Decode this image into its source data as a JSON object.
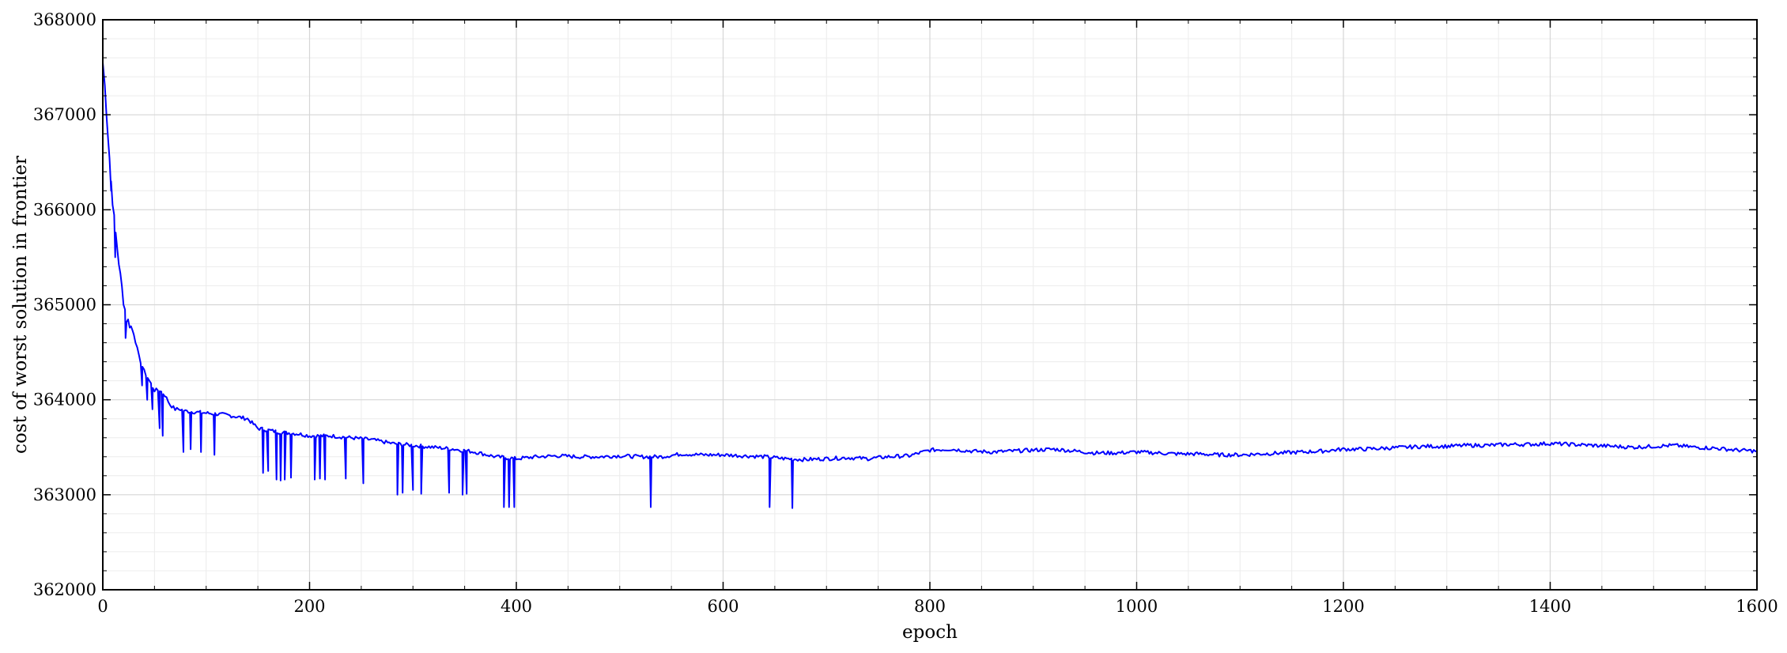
{
  "chart_data": {
    "type": "line",
    "title": "",
    "xlabel": "epoch",
    "ylabel": "cost of worst solution in frontier",
    "xlim": [
      0,
      1600
    ],
    "ylim": [
      362000,
      368000
    ],
    "x_ticks": [
      0,
      200,
      400,
      600,
      800,
      1000,
      1200,
      1400,
      1600
    ],
    "y_ticks": [
      362000,
      363000,
      364000,
      365000,
      366000,
      367000,
      368000
    ],
    "x_tick_labels": [
      "0",
      "200",
      "400",
      "600",
      "800",
      "1000",
      "1200",
      "1400",
      "1600"
    ],
    "y_tick_labels": [
      "362000",
      "363000",
      "364000",
      "365000",
      "366000",
      "367000",
      "368000"
    ],
    "grid": true,
    "minor_grid": true,
    "legend": "none",
    "series": [
      {
        "color": "#0000ff",
        "x": [
          0,
          2,
          5,
          8,
          11,
          14,
          17,
          20,
          23,
          26,
          30,
          35,
          40,
          45,
          50,
          55,
          60,
          65,
          70,
          75,
          80,
          90,
          100,
          110,
          120,
          130,
          140,
          150,
          160,
          170,
          180,
          190,
          200,
          220,
          240,
          260,
          280,
          300,
          320,
          340,
          360,
          380,
          400,
          420,
          440,
          460,
          480,
          500,
          520,
          540,
          560,
          580,
          600,
          620,
          640,
          660,
          680,
          700,
          720,
          740,
          760,
          780,
          800,
          820,
          840,
          860,
          880,
          900,
          920,
          940,
          960,
          980,
          1000,
          1020,
          1040,
          1060,
          1080,
          1100,
          1120,
          1140,
          1160,
          1180,
          1200,
          1220,
          1240,
          1260,
          1280,
          1300,
          1320,
          1340,
          1360,
          1380,
          1400,
          1420,
          1440,
          1460,
          1480,
          1500,
          1520,
          1540,
          1560,
          1580,
          1600
        ],
        "y": [
          367550,
          367300,
          366800,
          366300,
          365900,
          365600,
          365300,
          365050,
          364850,
          364800,
          364700,
          364450,
          364300,
          364200,
          364100,
          364100,
          364050,
          363950,
          363900,
          363900,
          363880,
          363870,
          363860,
          363850,
          363840,
          363820,
          363800,
          363700,
          363680,
          363660,
          363650,
          363640,
          363620,
          363620,
          363600,
          363580,
          363540,
          363520,
          363500,
          363480,
          363450,
          363400,
          363380,
          363400,
          363410,
          363400,
          363400,
          363410,
          363400,
          363400,
          363430,
          363420,
          363420,
          363410,
          363400,
          363380,
          363370,
          363380,
          363390,
          363380,
          363400,
          363410,
          363470,
          363480,
          363460,
          363450,
          363460,
          363470,
          363480,
          363460,
          363440,
          363440,
          363450,
          363440,
          363430,
          363430,
          363420,
          363420,
          363430,
          363440,
          363450,
          363460,
          363480,
          363480,
          363490,
          363500,
          363510,
          363510,
          363520,
          363520,
          363530,
          363530,
          363540,
          363530,
          363520,
          363510,
          363500,
          363510,
          363520,
          363500,
          363490,
          363470,
          363460
        ]
      }
    ],
    "spikes": [
      {
        "x": 8,
        "y": 366200
      },
      {
        "x": 12,
        "y": 365500
      },
      {
        "x": 22,
        "y": 364650
      },
      {
        "x": 38,
        "y": 364150
      },
      {
        "x": 43,
        "y": 364000
      },
      {
        "x": 48,
        "y": 363900
      },
      {
        "x": 55,
        "y": 363700
      },
      {
        "x": 58,
        "y": 363620
      },
      {
        "x": 78,
        "y": 363450
      },
      {
        "x": 85,
        "y": 363480
      },
      {
        "x": 95,
        "y": 363450
      },
      {
        "x": 108,
        "y": 363420
      },
      {
        "x": 155,
        "y": 363230
      },
      {
        "x": 160,
        "y": 363250
      },
      {
        "x": 168,
        "y": 363160
      },
      {
        "x": 172,
        "y": 363150
      },
      {
        "x": 176,
        "y": 363160
      },
      {
        "x": 182,
        "y": 363180
      },
      {
        "x": 205,
        "y": 363160
      },
      {
        "x": 210,
        "y": 363170
      },
      {
        "x": 215,
        "y": 363160
      },
      {
        "x": 235,
        "y": 363170
      },
      {
        "x": 252,
        "y": 363120
      },
      {
        "x": 285,
        "y": 363000
      },
      {
        "x": 290,
        "y": 363020
      },
      {
        "x": 300,
        "y": 363050
      },
      {
        "x": 308,
        "y": 363010
      },
      {
        "x": 335,
        "y": 363020
      },
      {
        "x": 348,
        "y": 363000
      },
      {
        "x": 352,
        "y": 363010
      },
      {
        "x": 388,
        "y": 362870
      },
      {
        "x": 393,
        "y": 362870
      },
      {
        "x": 398,
        "y": 362870
      },
      {
        "x": 530,
        "y": 362870
      },
      {
        "x": 645,
        "y": 362870
      },
      {
        "x": 667,
        "y": 362860
      }
    ]
  }
}
